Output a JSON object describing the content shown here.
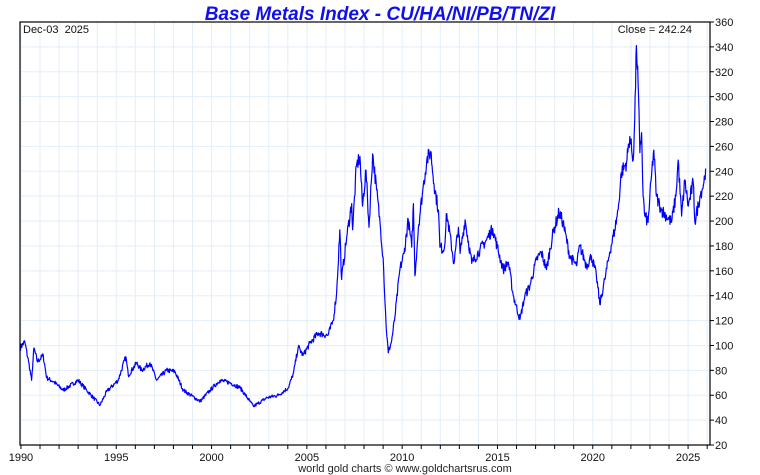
{
  "chart_data": {
    "type": "line",
    "title": "Base Metals Index - CU/HA/NI/PB/TN/ZI",
    "date_label": "Dec-03  2025",
    "close_label": "Close = 242.24",
    "footer": "world gold charts © www.goldchartsrus.com",
    "xlabel": "",
    "ylabel": "",
    "xlim": [
      1989.95,
      2026.15
    ],
    "ylim": [
      20,
      360
    ],
    "grid": true,
    "x_ticks": [
      1990,
      1995,
      2000,
      2005,
      2010,
      2015,
      2020,
      2025
    ],
    "x_tick_labels": [
      "1990",
      "1995",
      "2000",
      "2005",
      "2010",
      "2015",
      "2020",
      "2025"
    ],
    "y_ticks": [
      20,
      40,
      60,
      80,
      100,
      120,
      140,
      160,
      180,
      200,
      220,
      240,
      260,
      280,
      300,
      320,
      340,
      360
    ],
    "y_tick_labels": [
      "20",
      "40",
      "60",
      "80",
      "100",
      "120",
      "140",
      "160",
      "180",
      "200",
      "220",
      "240",
      "260",
      "280",
      "300",
      "320",
      "340",
      "360"
    ],
    "line_color": "#0000ff",
    "series": [
      {
        "name": "Base Metals Index",
        "x": [
          1989.95,
          1990.2,
          1990.4,
          1990.56,
          1990.68,
          1990.86,
          1991.17,
          1991.35,
          1991.7,
          1992.22,
          1993.0,
          1993.45,
          1994.15,
          1994.5,
          1995.1,
          1995.5,
          1995.63,
          1996.07,
          1996.33,
          1996.77,
          1997.12,
          1997.64,
          1998.08,
          1998.52,
          1999.4,
          1999.92,
          2000.44,
          2000.97,
          2001.5,
          2002.2,
          2002.9,
          2003.5,
          2004.03,
          2004.3,
          2004.55,
          2004.8,
          2005.17,
          2005.6,
          2006.1,
          2006.38,
          2006.56,
          2006.73,
          2006.82,
          2007.09,
          2007.35,
          2007.4,
          2007.6,
          2007.78,
          2007.92,
          2008.1,
          2008.26,
          2008.45,
          2008.66,
          2008.84,
          2009.0,
          2009.15,
          2009.27,
          2009.45,
          2009.62,
          2009.88,
          2010.1,
          2010.32,
          2010.5,
          2010.59,
          2010.67,
          2010.85,
          2011.08,
          2011.29,
          2011.5,
          2011.67,
          2011.9,
          2011.98,
          2012.2,
          2012.34,
          2012.72,
          2012.95,
          2013.04,
          2013.3,
          2013.65,
          2014.08,
          2014.43,
          2014.75,
          2014.99,
          2015.3,
          2015.57,
          2015.83,
          2016.18,
          2016.44,
          2016.7,
          2017.05,
          2017.3,
          2017.57,
          2017.92,
          2018.23,
          2018.44,
          2018.79,
          2019.14,
          2019.32,
          2019.67,
          2019.93,
          2020.19,
          2020.37,
          2020.63,
          2020.89,
          2021.15,
          2021.33,
          2021.5,
          2021.77,
          2021.94,
          2022.12,
          2022.2,
          2022.29,
          2022.38,
          2022.47,
          2022.56,
          2022.64,
          2022.73,
          2022.9,
          2023.08,
          2023.2,
          2023.34,
          2023.6,
          2023.87,
          2024.13,
          2024.36,
          2024.48,
          2024.66,
          2024.83,
          2025.01,
          2025.27,
          2025.36,
          2025.62,
          2025.83,
          2025.92
        ],
        "y": [
          98,
          103,
          87,
          72,
          98,
          87,
          92,
          74,
          71,
          64,
          72,
          64,
          52,
          63,
          72,
          91,
          76,
          86,
          80,
          86,
          72,
          80,
          79,
          64,
          55,
          64,
          72,
          70,
          66,
          51,
          58,
          60,
          66,
          78,
          99,
          92,
          102,
          110,
          108,
          120,
          142,
          193,
          153,
          187,
          214,
          193,
          244,
          252,
          212,
          241,
          195,
          254,
          225,
          198,
          171,
          118,
          94,
          104,
          123,
          161,
          174,
          201,
          179,
          214,
          156,
          195,
          225,
          249,
          256,
          230,
          209,
          179,
          177,
          206,
          166,
          195,
          174,
          201,
          166,
          177,
          185,
          194,
          179,
          161,
          167,
          140,
          121,
          140,
          148,
          169,
          175,
          161,
          191,
          207,
          199,
          172,
          164,
          180,
          164,
          172,
          156,
          133,
          153,
          175,
          193,
          209,
          239,
          247,
          268,
          249,
          281,
          341,
          311,
          255,
          271,
          220,
          204,
          199,
          236,
          257,
          220,
          209,
          204,
          199,
          220,
          249,
          204,
          233,
          212,
          231,
          199,
          220,
          231,
          242.24
        ]
      }
    ]
  }
}
